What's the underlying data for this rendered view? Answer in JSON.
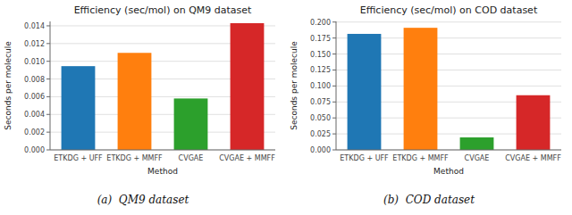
{
  "chart_data": [
    {
      "type": "bar",
      "title": "Efficiency (sec/mol) on QM9 dataset",
      "xlabel": "Method",
      "ylabel": "Seconds per molecule",
      "categories": [
        "ETKDG + UFF",
        "ETKDG + MMFF",
        "CVGAE",
        "CVGAE + MMFF"
      ],
      "values": [
        0.00945,
        0.01095,
        0.0058,
        0.0143
      ],
      "colors": [
        "#1f77b4",
        "#ff7f0e",
        "#2ca02c",
        "#d62728"
      ],
      "ylim": [
        0,
        0.0145
      ],
      "yticks": [
        {
          "value": 0.0,
          "label": "0.000"
        },
        {
          "value": 0.002,
          "label": "0.002"
        },
        {
          "value": 0.004,
          "label": "0.004"
        },
        {
          "value": 0.006,
          "label": "0.006"
        },
        {
          "value": 0.008,
          "label": "0.008"
        },
        {
          "value": 0.01,
          "label": "0.010"
        },
        {
          "value": 0.012,
          "label": "0.012"
        },
        {
          "value": 0.014,
          "label": "0.014"
        }
      ],
      "grid": true,
      "annotations": [
        "(a)  QM9 dataset"
      ]
    },
    {
      "type": "bar",
      "title": "Efficiency (sec/mol) on COD dataset",
      "xlabel": "Method",
      "ylabel": "Seconds per molecule",
      "categories": [
        "ETKDG + UFF",
        "ETKDG + MMFF",
        "CVGAE",
        "CVGAE + MMFF"
      ],
      "values": [
        0.1815,
        0.191,
        0.0195,
        0.0855
      ],
      "colors": [
        "#1f77b4",
        "#ff7f0e",
        "#2ca02c",
        "#d62728"
      ],
      "ylim": [
        0,
        0.201
      ],
      "yticks": [
        {
          "value": 0.0,
          "label": "0.000"
        },
        {
          "value": 0.025,
          "label": "0.025"
        },
        {
          "value": 0.05,
          "label": "0.050"
        },
        {
          "value": 0.075,
          "label": "0.075"
        },
        {
          "value": 0.1,
          "label": "0.100"
        },
        {
          "value": 0.125,
          "label": "0.125"
        },
        {
          "value": 0.15,
          "label": "0.150"
        },
        {
          "value": 0.175,
          "label": "0.175"
        },
        {
          "value": 0.2,
          "label": "0.200"
        }
      ],
      "grid": true,
      "annotations": [
        "(b)  COD dataset"
      ]
    }
  ]
}
